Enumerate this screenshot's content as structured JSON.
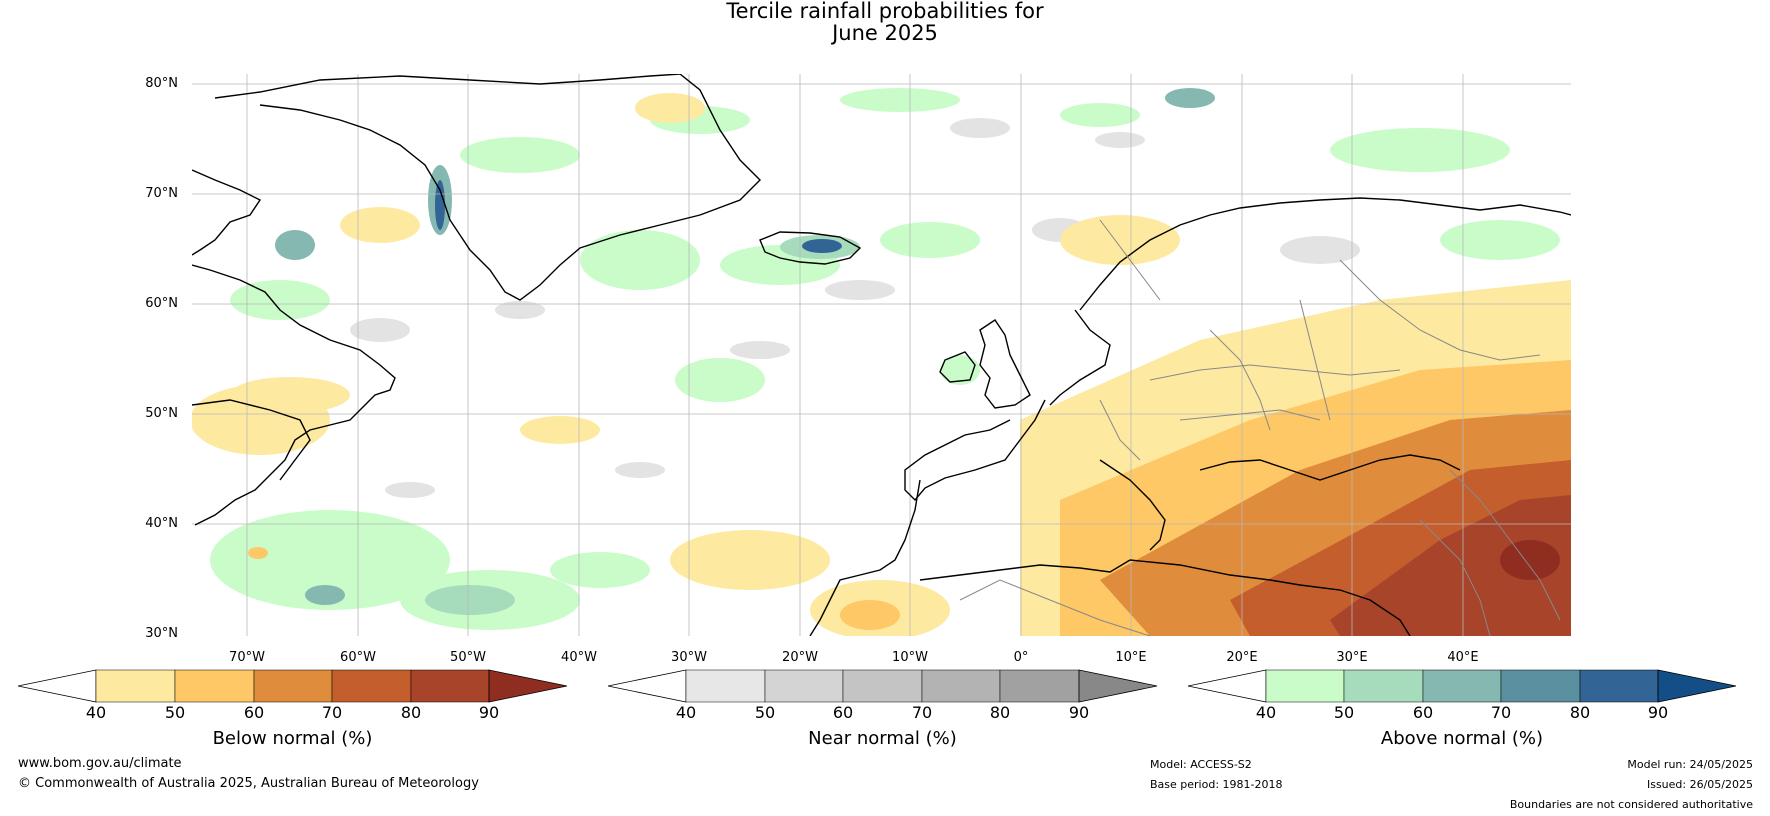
{
  "title": {
    "line1": "Tercile rainfall probabilities for",
    "line2": "June 2025"
  },
  "lat_labels": [
    "80°N",
    "70°N",
    "60°N",
    "50°N",
    "40°N",
    "30°N"
  ],
  "lon_labels": [
    "70°W",
    "60°W",
    "50°W",
    "40°W",
    "30°W",
    "20°W",
    "10°W",
    "0°",
    "10°E",
    "20°E",
    "30°E",
    "40°E"
  ],
  "colorbars": [
    {
      "label": "Below normal (%)",
      "ticks": [
        "40",
        "50",
        "60",
        "70",
        "80",
        "90"
      ],
      "colors": [
        "#ffffff",
        "#fee9a0",
        "#fdc865",
        "#df8c3c",
        "#c45e2d",
        "#a7442a",
        "#8e2d20"
      ]
    },
    {
      "label": "Near normal (%)",
      "ticks": [
        "40",
        "50",
        "60",
        "70",
        "80",
        "90"
      ],
      "colors": [
        "#ffffff",
        "#e7e7e7",
        "#d4d4d4",
        "#c4c4c4",
        "#b3b3b3",
        "#a1a1a1",
        "#888888"
      ]
    },
    {
      "label": "Above normal (%)",
      "ticks": [
        "40",
        "50",
        "60",
        "70",
        "80",
        "90"
      ],
      "colors": [
        "#ffffff",
        "#c9fcc9",
        "#a6dcbc",
        "#85b8b0",
        "#5a90a0",
        "#336496",
        "#144e86"
      ]
    }
  ],
  "footer": {
    "url": "www.bom.gov.au/climate",
    "copyright": "© Commonwealth of Australia 2025, Australian Bureau of Meteorology",
    "model": "Model: ACCESS-S2",
    "base_period": "Base period: 1981-2018",
    "model_run": "Model run: 24/05/2025",
    "issued": "Issued: 26/05/2025",
    "disclaimer": "Boundaries are not considered authoritative"
  }
}
